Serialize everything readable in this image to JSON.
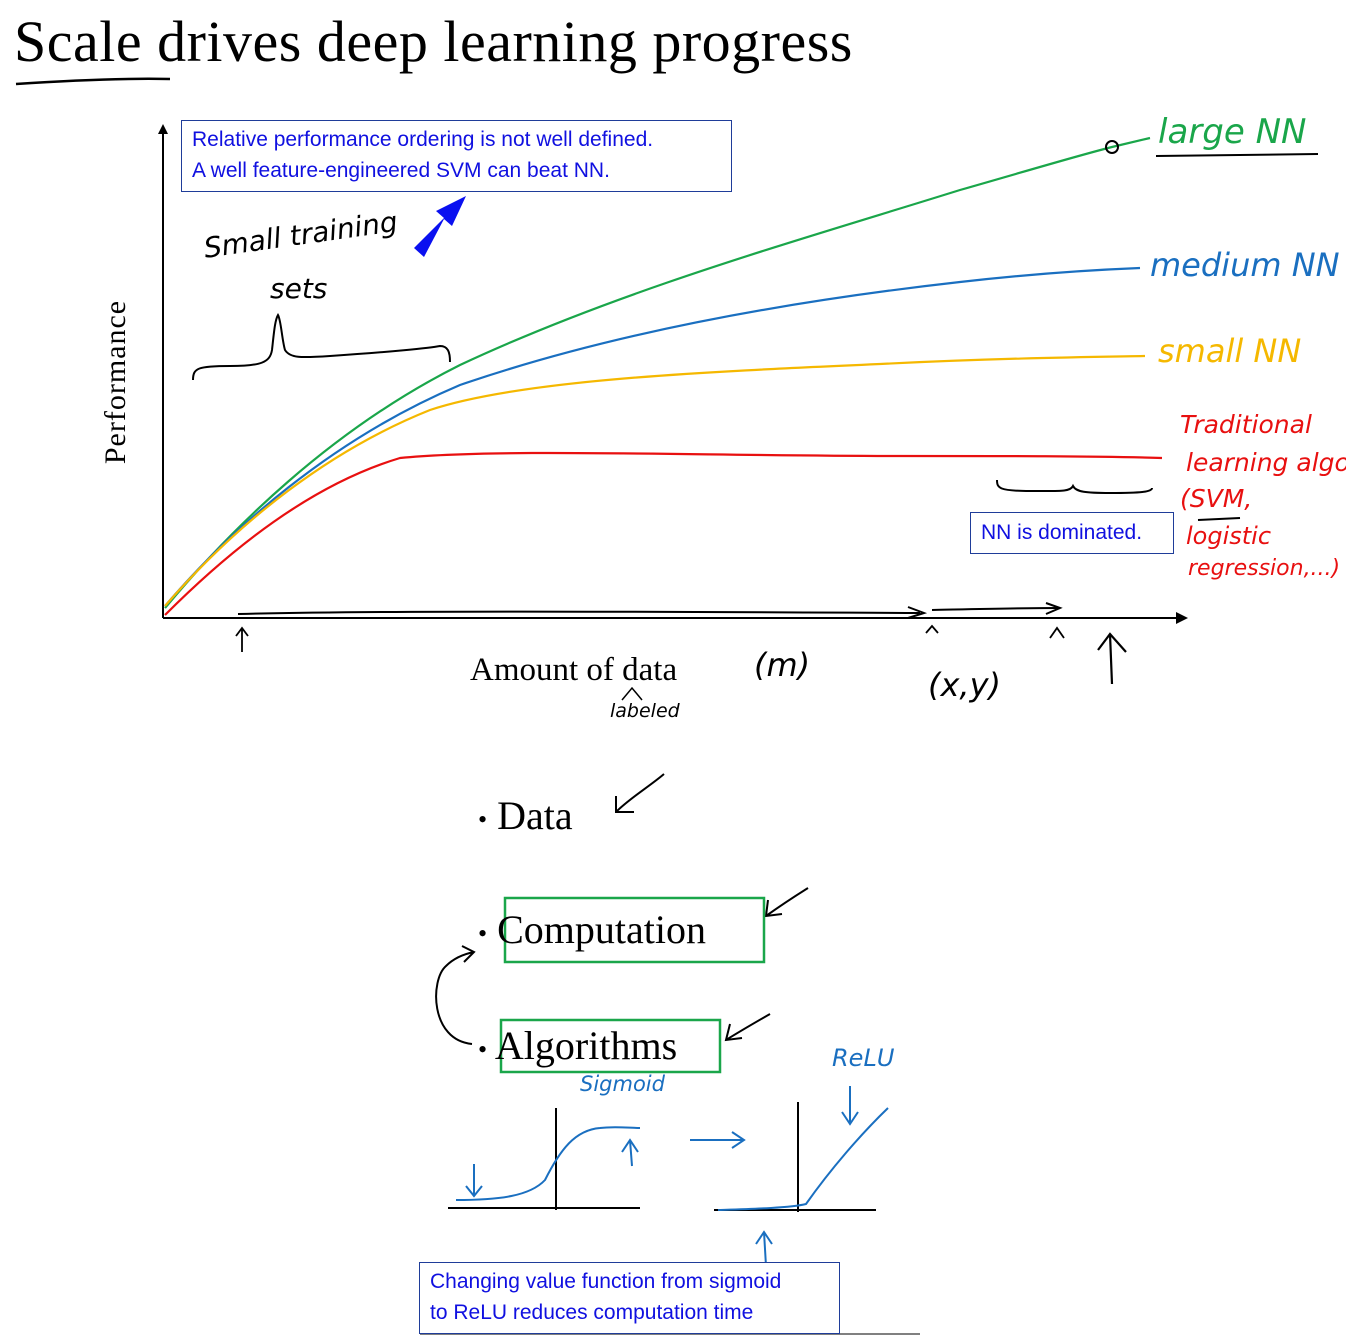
{
  "title": {
    "underlined": "Scale",
    "rest": " drives deep learning progress"
  },
  "chart": {
    "ylabel": "Performance",
    "xlabel": "Amount of data",
    "xlabel_annotation": "labeled",
    "m_label": "(m)",
    "xy_label": "(x,y)",
    "small_training_sets": [
      "Small training",
      "sets"
    ],
    "curve_labels": {
      "large": "large NN",
      "medium": "medium NN",
      "small": "small NN",
      "traditional": [
        "Traditional",
        "learning algo",
        "(SVM,",
        "logistic",
        "regression,...)"
      ]
    },
    "colors": {
      "large": "#1aa64a",
      "medium": "#1a6fc0",
      "small": "#f5b800",
      "traditional": "#e81010",
      "note_text": "#1010e0"
    }
  },
  "notes": {
    "ordering": [
      "Relative performance ordering is not well defined.",
      "A well feature-engineered SVM can beat NN."
    ],
    "dominated": "NN is dominated.",
    "relu_note": [
      "Changing value function from sigmoid",
      "to ReLU reduces computation time"
    ]
  },
  "bullets": {
    "bullet_char": "•",
    "items": [
      "Data",
      "Computation",
      "Algorithms"
    ]
  },
  "sketches": {
    "sigmoid_label": "Sigmoid",
    "relu_label": "ReLU"
  }
}
